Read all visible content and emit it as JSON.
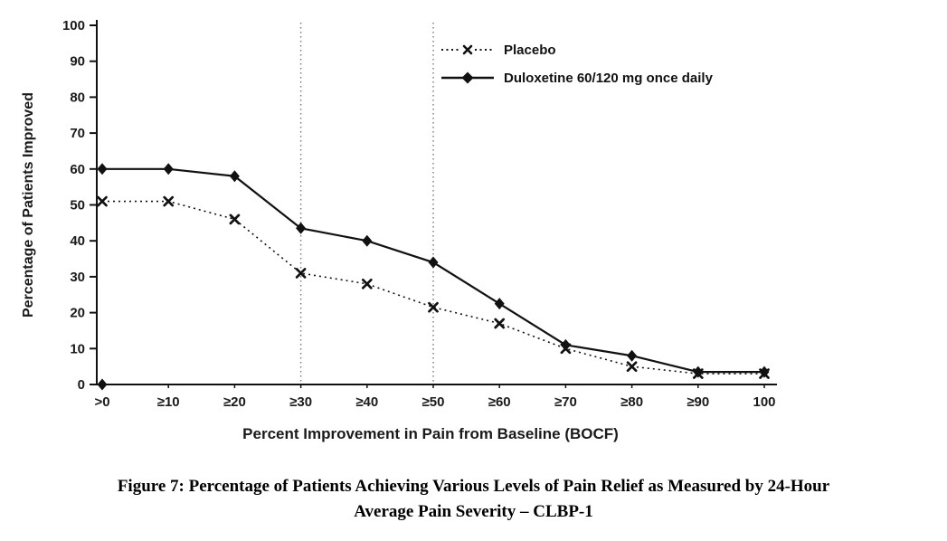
{
  "figure": {
    "caption_line1": "Figure 7: Percentage of Patients Achieving Various Levels of Pain Relief as Measured by 24-Hour",
    "caption_line2": "Average Pain Severity – CLBP-1"
  },
  "chart_data": {
    "type": "line",
    "title": "",
    "xlabel": "Percent Improvement in Pain from Baseline (BOCF)",
    "ylabel": "Percentage of Patients Improved",
    "ylim": [
      0,
      100
    ],
    "ytick_interval": 10,
    "grid": false,
    "legend_position": "top-center-right",
    "categories": [
      ">0",
      "≥10",
      "≥20",
      "≥30",
      "≥40",
      "≥50",
      "≥60",
      "≥70",
      "≥80",
      "≥90",
      "100"
    ],
    "series": [
      {
        "name": "Placebo",
        "marker": "x",
        "line": "dotted",
        "color": "#111111",
        "values": [
          51,
          51,
          46,
          31,
          28,
          21.5,
          17,
          10,
          5,
          3,
          3
        ]
      },
      {
        "name": "Duloxetine 60/120 mg once daily",
        "marker": "diamond",
        "line": "solid",
        "color": "#111111",
        "values": [
          60,
          60,
          58,
          43.5,
          40,
          34,
          22.5,
          11,
          8,
          3.5,
          3.5
        ]
      }
    ],
    "reference_lines_at_categories": [
      "≥30",
      "≥50"
    ],
    "origin_marker": {
      "x": ">0",
      "y": 0
    },
    "colors": {
      "line": "#111111",
      "text": "#1a1a1a",
      "reference": "#777777"
    }
  }
}
